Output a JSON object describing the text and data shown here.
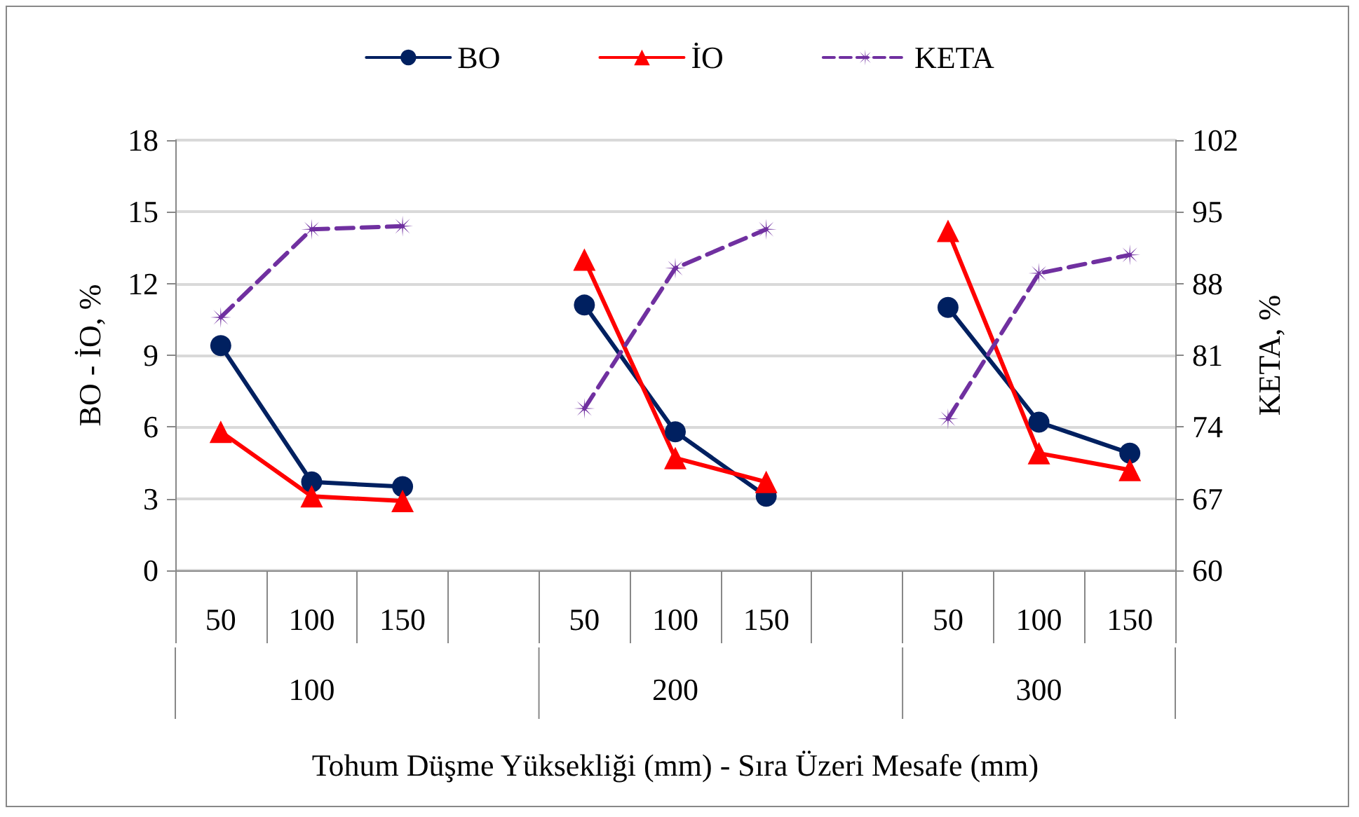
{
  "chart_data": {
    "type": "line",
    "xlabel": "Tohum Düşme Yüksekliği (mm) - Sıra Üzeri Mesafe (mm)",
    "ylabel": "BO - İO, %",
    "y2label": "KETA, %",
    "categories": [
      "50",
      "100",
      "150",
      null,
      "50",
      "100",
      "150",
      null,
      "50",
      "100",
      "150"
    ],
    "annotations": [
      "100",
      "200",
      "300"
    ],
    "series": [
      {
        "name": "BO",
        "color": "#002060",
        "marker": "circle",
        "line_style": "solid",
        "values": [
          9.4,
          3.7,
          3.5,
          null,
          11.1,
          5.8,
          3.1,
          null,
          11.0,
          6.2,
          4.9
        ]
      },
      {
        "name": "İO",
        "color": "#ff0000",
        "marker": "triangle",
        "line_style": "solid",
        "values": [
          5.8,
          3.1,
          2.9,
          null,
          13.0,
          4.7,
          3.7,
          null,
          14.2,
          4.9,
          4.2
        ]
      },
      {
        "name": "KETA",
        "color": "#7030a0",
        "marker": "star",
        "line_style": "dashed",
        "axis": "y2",
        "values": [
          84.7,
          93.3,
          93.6,
          null,
          75.8,
          89.5,
          93.3,
          null,
          74.8,
          89.0,
          90.8
        ]
      }
    ],
    "ylim": [
      0,
      18
    ],
    "yticks": [
      0,
      3,
      6,
      9,
      12,
      15,
      18
    ],
    "y2lim": [
      60,
      102
    ],
    "y2ticks": [
      60,
      67,
      74,
      81,
      88,
      95,
      102
    ],
    "grid": "y",
    "legend": "top"
  }
}
